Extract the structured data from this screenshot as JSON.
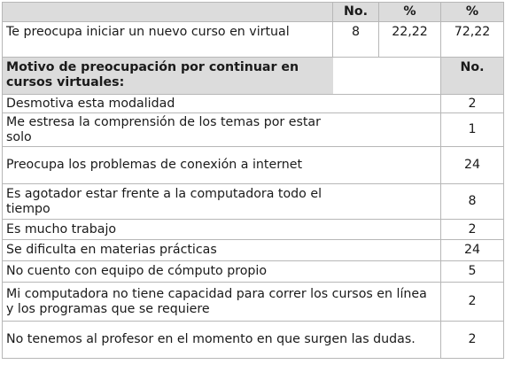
{
  "header": {
    "col_no": "No.",
    "col_pct1": "%",
    "col_pct2": "%"
  },
  "first_row": {
    "label": "Te preocupa iniciar un nuevo curso en virtual",
    "no": "8",
    "pct1": "22,22",
    "pct2": "72,22"
  },
  "section": {
    "title": "Motivo de preocupación por continuar en cursos virtuales:",
    "col_no": "No."
  },
  "rows": [
    {
      "label": "Desmotiva esta modalidad",
      "no": "2"
    },
    {
      "label": "Me estresa la comprensión de los temas por estar solo",
      "no": "1"
    },
    {
      "label": "Preocupa los problemas de conexión a internet",
      "no": "24"
    },
    {
      "label": "Es agotador estar frente a la computadora todo el tiempo",
      "no": "8"
    },
    {
      "label": "Es mucho trabajo",
      "no": "2"
    },
    {
      "label": "Se dificulta en materias prácticas",
      "no": "24"
    },
    {
      "label": "No cuento con equipo de cómputo propio",
      "no": "5"
    },
    {
      "label": "Mi computadora no tiene capacidad para correr los cursos en línea y los programas que se requiere",
      "no": "2"
    },
    {
      "label": "No tenemos al profesor en el momento en que surgen las dudas.",
      "no": "2"
    }
  ]
}
